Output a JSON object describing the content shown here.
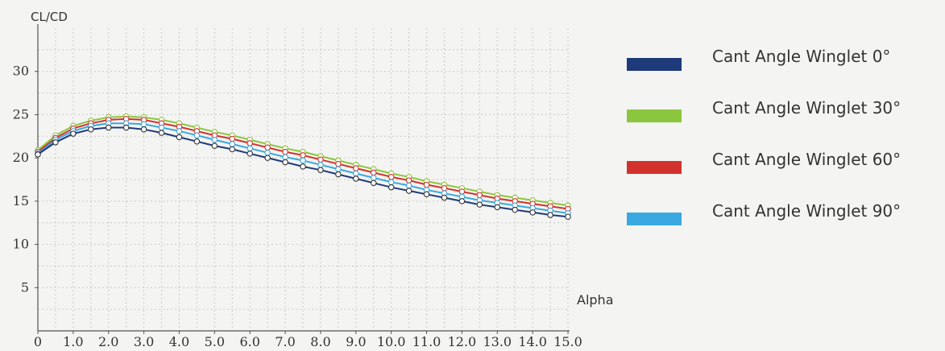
{
  "chart_data": {
    "type": "line",
    "ylabel": "CL/CD",
    "xlabel": "Alpha",
    "xlim": [
      0,
      15
    ],
    "ylim": [
      0,
      35
    ],
    "x_ticks": [
      "0",
      "1.0",
      "2.0",
      "3.0",
      "4.0",
      "5.0",
      "6.0",
      "7.0",
      "8.0",
      "9.0",
      "10.0",
      "11.0",
      "12.0",
      "13.0",
      "14.0",
      "15.0"
    ],
    "y_ticks": [
      "5",
      "10",
      "15",
      "20",
      "25",
      "30"
    ],
    "grid": true,
    "legend_position": "right",
    "x": [
      0,
      0.5,
      1.0,
      1.5,
      2.0,
      2.5,
      3.0,
      3.5,
      4.0,
      4.5,
      5.0,
      5.5,
      6.0,
      6.5,
      7.0,
      7.5,
      8.0,
      8.5,
      9.0,
      9.5,
      10.0,
      10.5,
      11.0,
      11.5,
      12.0,
      12.5,
      13.0,
      13.5,
      14.0,
      14.5,
      15.0
    ],
    "series": [
      {
        "name": "Cant Angle Winglet 0°",
        "color": "#1f3a7a",
        "values": [
          20.4,
          21.8,
          22.8,
          23.3,
          23.5,
          23.5,
          23.3,
          22.9,
          22.4,
          21.9,
          21.4,
          21.0,
          20.5,
          20.0,
          19.5,
          19.0,
          18.6,
          18.1,
          17.6,
          17.1,
          16.6,
          16.2,
          15.8,
          15.4,
          15.0,
          14.6,
          14.3,
          14.0,
          13.7,
          13.4,
          13.2
        ]
      },
      {
        "name": "Cant Angle Winglet 30°",
        "color": "#8cc63f",
        "values": [
          20.9,
          22.6,
          23.7,
          24.3,
          24.7,
          24.8,
          24.7,
          24.4,
          24.0,
          23.5,
          23.0,
          22.6,
          22.1,
          21.6,
          21.1,
          20.7,
          20.2,
          19.7,
          19.2,
          18.7,
          18.2,
          17.8,
          17.3,
          16.9,
          16.5,
          16.1,
          15.7,
          15.4,
          15.1,
          14.8,
          14.5
        ]
      },
      {
        "name": "Cant Angle Winglet 60°",
        "color": "#d2322d",
        "values": [
          20.7,
          22.3,
          23.4,
          24.0,
          24.4,
          24.5,
          24.4,
          24.0,
          23.6,
          23.1,
          22.6,
          22.2,
          21.7,
          21.2,
          20.7,
          20.3,
          19.8,
          19.3,
          18.8,
          18.3,
          17.8,
          17.4,
          16.9,
          16.5,
          16.1,
          15.7,
          15.3,
          15.0,
          14.7,
          14.4,
          14.1
        ]
      },
      {
        "name": "Cant Angle Winglet 90°",
        "color": "#3aa8e0",
        "values": [
          20.5,
          22.1,
          23.1,
          23.7,
          24.0,
          24.0,
          23.9,
          23.5,
          23.1,
          22.6,
          22.1,
          21.6,
          21.1,
          20.6,
          20.1,
          19.7,
          19.2,
          18.7,
          18.2,
          17.7,
          17.2,
          16.8,
          16.3,
          15.9,
          15.5,
          15.1,
          14.8,
          14.5,
          14.2,
          13.9,
          13.6
        ]
      }
    ]
  }
}
